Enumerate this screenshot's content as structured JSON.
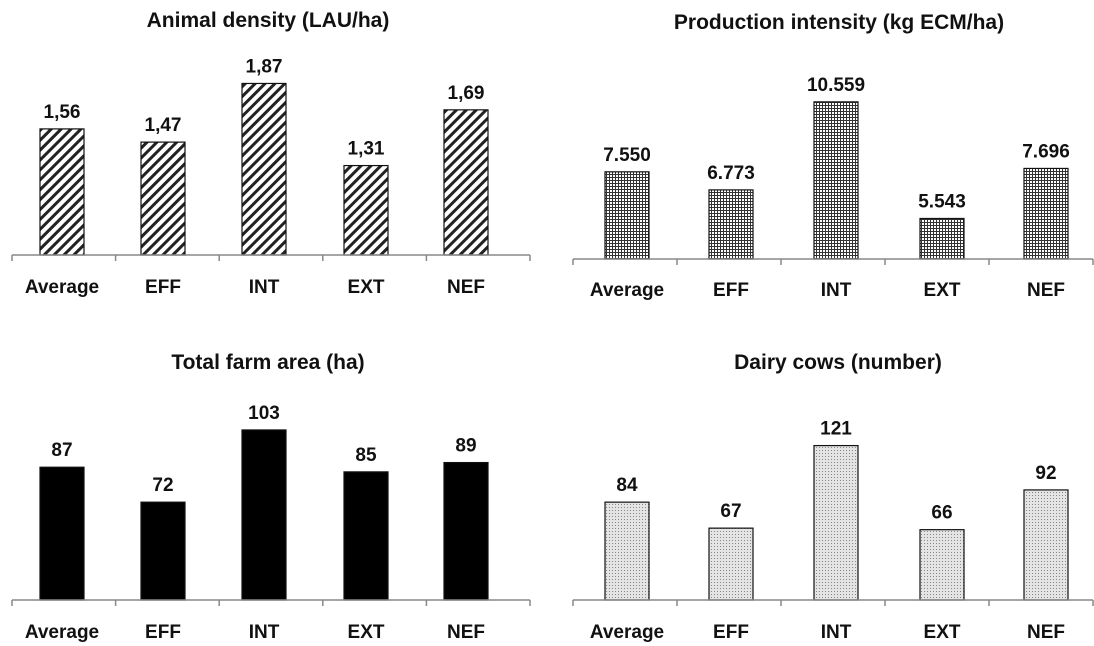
{
  "chart_data": [
    {
      "type": "bar",
      "title": "Animal density (LAU/ha)",
      "categories": [
        "Average",
        "EFF",
        "INT",
        "EXT",
        "NEF"
      ],
      "values": [
        1.56,
        1.47,
        1.87,
        1.31,
        1.69
      ],
      "value_labels": [
        "1,56",
        "1,47",
        "1,87",
        "1,31",
        "1,69"
      ],
      "ylim": [
        0.7,
        2.03
      ],
      "fill": "diagonal-hatch",
      "grid": false
    },
    {
      "type": "bar",
      "title": "Production intensity (kg ECM/ha)",
      "categories": [
        "Average",
        "EFF",
        "INT",
        "EXT",
        "NEF"
      ],
      "values": [
        7550,
        6773,
        10559,
        5543,
        7696
      ],
      "value_labels": [
        "7.550",
        "6.773",
        "10.559",
        "5.543",
        "7.696"
      ],
      "ylim": [
        3800,
        11500
      ],
      "fill": "grid-hatch",
      "grid": false
    },
    {
      "type": "bar",
      "title": "Total farm area (ha)",
      "categories": [
        "Average",
        "EFF",
        "INT",
        "EXT",
        "NEF"
      ],
      "values": [
        87,
        72,
        103,
        85,
        89
      ],
      "value_labels": [
        "87",
        "72",
        "103",
        "85",
        "89"
      ],
      "ylim": [
        30,
        118
      ],
      "fill": "solid-black",
      "grid": false
    },
    {
      "type": "bar",
      "title": "Dairy cows (number)",
      "categories": [
        "Average",
        "EFF",
        "INT",
        "EXT",
        "NEF"
      ],
      "values": [
        84,
        67,
        121,
        66,
        92
      ],
      "value_labels": [
        "84",
        "67",
        "121",
        "66",
        "92"
      ],
      "ylim": [
        20,
        141
      ],
      "fill": "dotted",
      "grid": false
    }
  ]
}
